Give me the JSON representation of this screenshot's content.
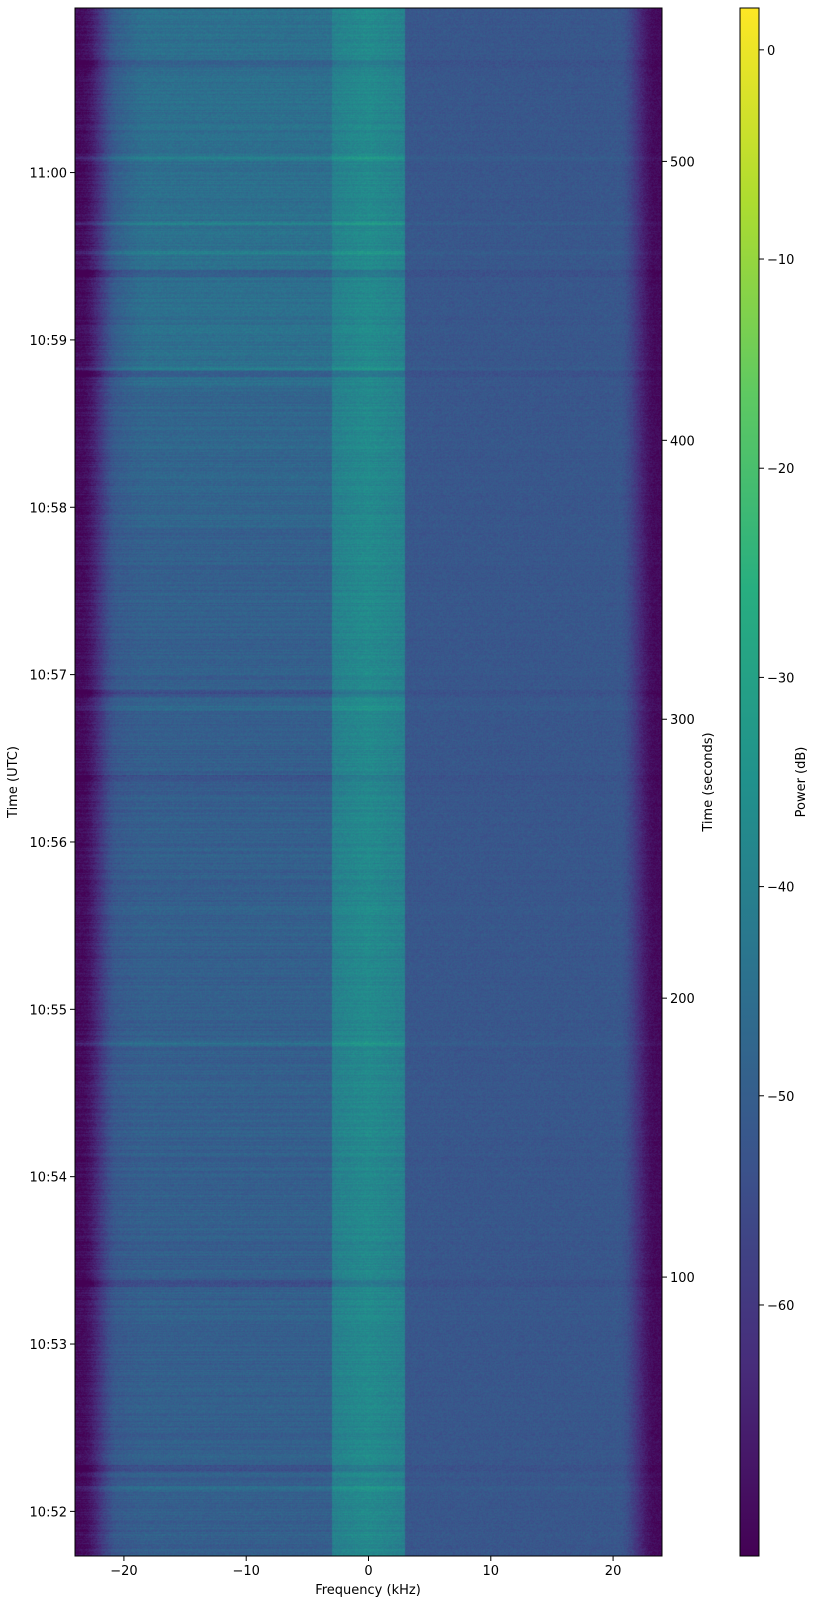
{
  "chart_data": {
    "type": "heatmap",
    "title": "",
    "xlabel": "Frequency (kHz)",
    "ylabel_left": "Time (UTC)",
    "ylabel_right": "Time (seconds)",
    "colorbar_label": "Power (dB)",
    "colormap": "viridis",
    "xlim": [
      -24,
      24
    ],
    "x_ticks": [
      -20,
      -10,
      0,
      10,
      20
    ],
    "x_tick_labels": [
      "−20",
      "−10",
      "0",
      "10",
      "20"
    ],
    "seconds_lim": [
      0,
      555
    ],
    "seconds_ticks": [
      100,
      200,
      300,
      400,
      500
    ],
    "seconds_tick_labels": [
      "100",
      "200",
      "300",
      "400",
      "500"
    ],
    "utc_ticks_seconds": [
      16,
      76,
      136,
      196,
      256,
      316,
      376,
      436,
      496
    ],
    "utc_tick_labels": [
      "10:52",
      "10:53",
      "10:54",
      "10:55",
      "10:56",
      "10:57",
      "10:58",
      "10:59",
      "11:00"
    ],
    "clim": [
      -72,
      2
    ],
    "colorbar_ticks": [
      0,
      -10,
      -20,
      -30,
      -40,
      -50,
      -60
    ],
    "colorbar_tick_labels": [
      "0",
      "−10",
      "−20",
      "−30",
      "−40",
      "−50",
      "−60"
    ],
    "features": {
      "center_band_khz": [
        -3,
        3
      ],
      "noise_floor_db": -52,
      "center_band_db": -40,
      "lower_band_db": -45,
      "edge_rolloff_db": -70,
      "low_edge_khz": -22,
      "high_edge_khz": 22
    }
  }
}
